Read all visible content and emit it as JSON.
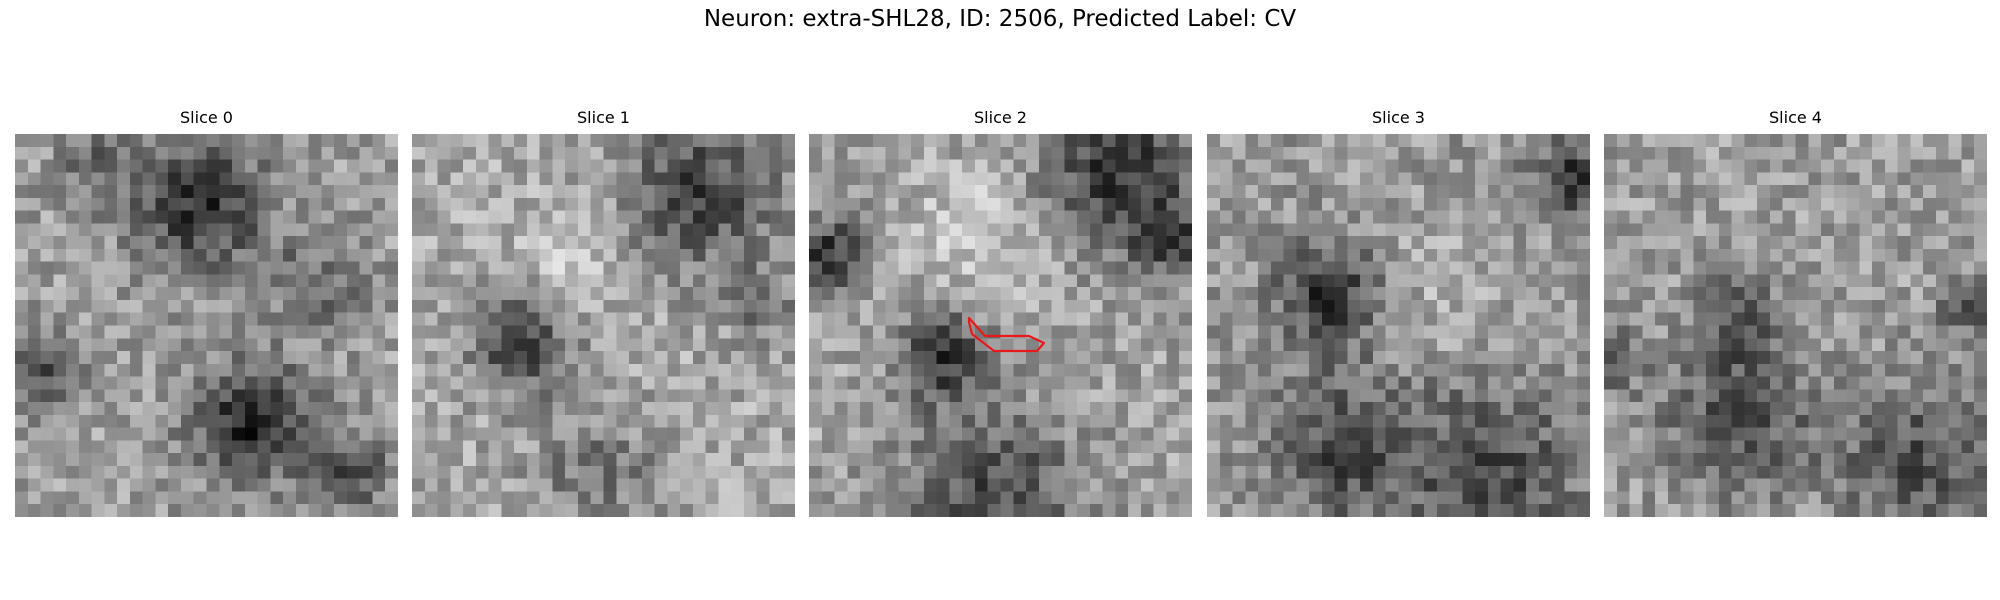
{
  "figure": {
    "title": "Neuron: extra-SHL28, ID: 2506, Predicted Label: CV"
  },
  "colormap": "gray",
  "slices": [
    {
      "label": "Slice 0",
      "seed": 11,
      "has_contour": false
    },
    {
      "label": "Slice 1",
      "seed": 23,
      "has_contour": false
    },
    {
      "label": "Slice 2",
      "seed": 37,
      "has_contour": true
    },
    {
      "label": "Slice 3",
      "seed": 41,
      "has_contour": false
    },
    {
      "label": "Slice 4",
      "seed": 59,
      "has_contour": false
    }
  ],
  "contour_color": "#e8191c"
}
